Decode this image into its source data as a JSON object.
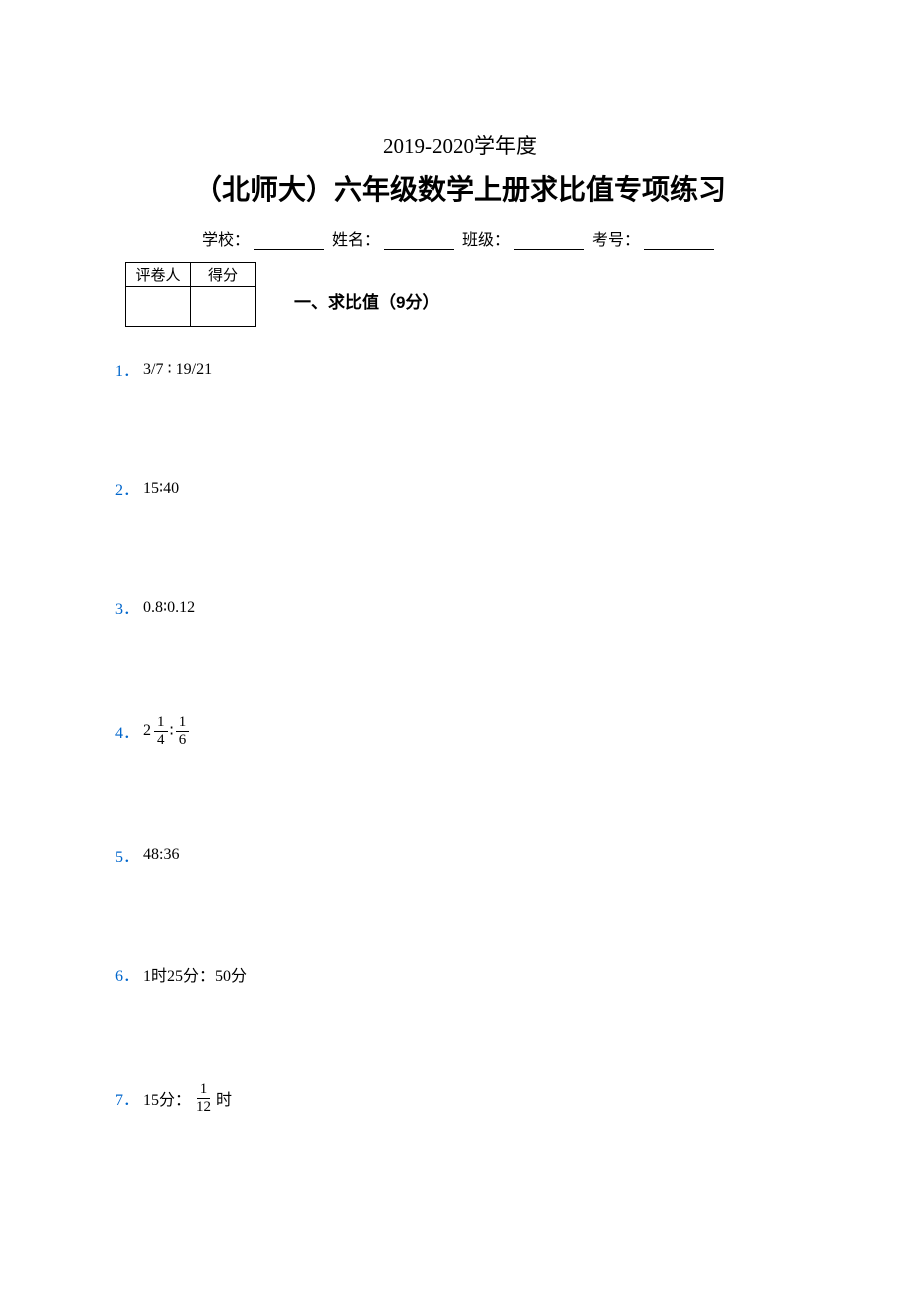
{
  "header": {
    "year_line": "2019-2020学年度",
    "title": "（北师大）六年级数学上册求比值专项练习",
    "info": {
      "school_label": "学校：",
      "name_label": " 姓名：",
      "class_label": " 班级：",
      "examno_label": " 考号："
    }
  },
  "score_table": {
    "grader_label": "评卷人",
    "score_label": "得分"
  },
  "section": {
    "title": "一、求比值（9分）"
  },
  "problems": {
    "p1": {
      "num": "1．",
      "text": "3/7 ∶ 19/21"
    },
    "p2": {
      "num": "2．",
      "text": "15∶40"
    },
    "p3": {
      "num": "3．",
      "text": "0.8∶0.12"
    },
    "p4": {
      "num": "4．",
      "prefix": "2",
      "f1_num": "1",
      "f1_den": "4",
      "colon": " ∶ ",
      "f2_num": "1",
      "f2_den": "6"
    },
    "p5": {
      "num": "5．",
      "text": "48:36"
    },
    "p6": {
      "num": "6．",
      "text": "1时25分：50分"
    },
    "p7": {
      "num": "7．",
      "prefix": "15分：",
      "f_num": "1",
      "f_den": "12",
      "suffix": " 时"
    }
  },
  "colors": {
    "problem_number": "#0066cc",
    "text": "#000000",
    "background": "#ffffff"
  }
}
